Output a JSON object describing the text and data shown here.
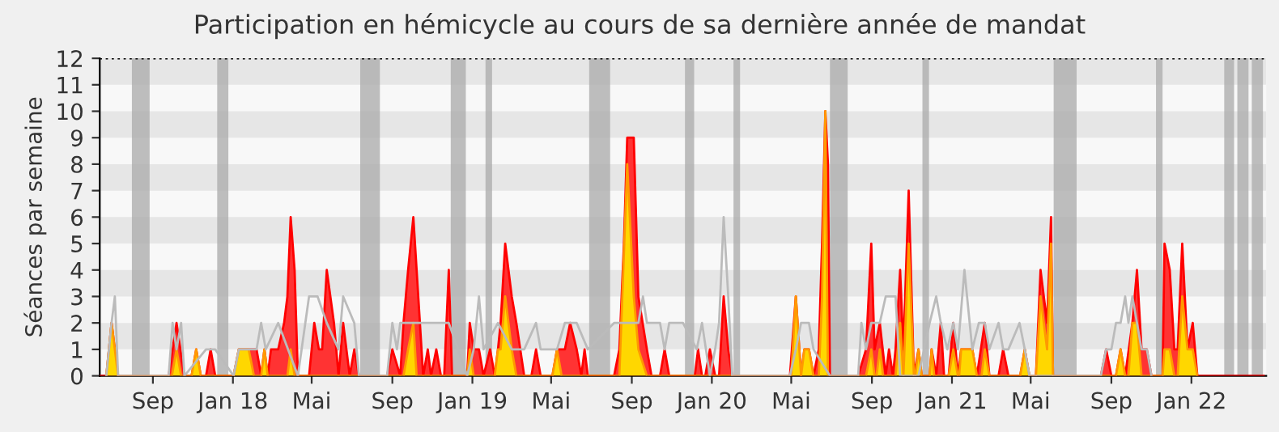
{
  "chart_data": {
    "type": "area",
    "title": "Participation en hémicycle au cours de sa dernière année de mandat",
    "ylabel": "Séances par semaine",
    "xlim": [
      "2017-06-12",
      "2022-04-25"
    ],
    "ylim": [
      0,
      12
    ],
    "yticks": [
      0,
      1,
      2,
      3,
      4,
      5,
      6,
      7,
      8,
      9,
      10,
      11,
      12
    ],
    "xticks": [
      {
        "value": "2017-09-01",
        "label": "Sep"
      },
      {
        "value": "2018-01-01",
        "label": "Jan 18"
      },
      {
        "value": "2018-05-01",
        "label": "Mai"
      },
      {
        "value": "2018-09-01",
        "label": "Sep"
      },
      {
        "value": "2019-01-01",
        "label": "Jan 19"
      },
      {
        "value": "2019-05-01",
        "label": "Mai"
      },
      {
        "value": "2019-09-01",
        "label": "Sep"
      },
      {
        "value": "2020-01-01",
        "label": "Jan 20"
      },
      {
        "value": "2020-05-01",
        "label": "Mai"
      },
      {
        "value": "2020-09-01",
        "label": "Sep"
      },
      {
        "value": "2021-01-01",
        "label": "Jan 21"
      },
      {
        "value": "2021-05-01",
        "label": "Mai"
      },
      {
        "value": "2021-09-01",
        "label": "Sep"
      },
      {
        "value": "2022-01-01",
        "label": "Jan 22"
      }
    ],
    "legend": false,
    "ref_lines": [
      {
        "axis": "y",
        "value": 12,
        "color": "#000000",
        "line_style": "dotted"
      }
    ],
    "bands": [
      {
        "axis": "x",
        "from": "2017-07-31",
        "to": "2017-08-27",
        "color": "#aaaaaa"
      },
      {
        "axis": "x",
        "from": "2017-12-08",
        "to": "2017-12-25",
        "color": "#aaaaaa"
      },
      {
        "axis": "x",
        "from": "2018-07-14",
        "to": "2018-08-13",
        "color": "#aaaaaa"
      },
      {
        "axis": "x",
        "from": "2018-11-29",
        "to": "2018-12-22",
        "color": "#aaaaaa"
      },
      {
        "axis": "x",
        "from": "2019-01-21",
        "to": "2019-01-31",
        "color": "#aaaaaa"
      },
      {
        "axis": "x",
        "from": "2019-06-28",
        "to": "2019-07-30",
        "color": "#aaaaaa"
      },
      {
        "axis": "x",
        "from": "2019-11-21",
        "to": "2019-12-05",
        "color": "#aaaaaa"
      },
      {
        "axis": "x",
        "from": "2020-02-03",
        "to": "2020-02-13",
        "color": "#aaaaaa"
      },
      {
        "axis": "x",
        "from": "2020-06-29",
        "to": "2020-07-26",
        "color": "#aaaaaa"
      },
      {
        "axis": "x",
        "from": "2020-11-17",
        "to": "2020-11-27",
        "color": "#aaaaaa"
      },
      {
        "axis": "x",
        "from": "2021-06-05",
        "to": "2021-07-10",
        "color": "#aaaaaa"
      },
      {
        "axis": "x",
        "from": "2021-11-08",
        "to": "2021-11-18",
        "color": "#aaaaaa"
      },
      {
        "axis": "x",
        "from": "2022-02-20",
        "to": "2022-03-07",
        "color": "#aaaaaa"
      },
      {
        "axis": "x",
        "from": "2022-03-12",
        "to": "2022-03-29",
        "color": "#aaaaaa"
      },
      {
        "axis": "x",
        "from": "2022-04-03",
        "to": "2022-04-20",
        "color": "#aaaaaa"
      }
    ],
    "series": [
      {
        "type": "line",
        "color": "#bbbbbb",
        "x": [
          "2017-06-22",
          "2017-06-30",
          "2017-07-05",
          "2017-07-10",
          "2017-09-25",
          "2017-10-01",
          "2017-10-07",
          "2017-10-14",
          "2017-10-19",
          "2017-11-21",
          "2017-12-05",
          "2018-01-02",
          "2018-01-10",
          "2018-02-06",
          "2018-02-13",
          "2018-02-20",
          "2018-03-11",
          "2018-04-10",
          "2018-04-27",
          "2018-05-10",
          "2018-05-24",
          "2018-06-11",
          "2018-06-18",
          "2018-07-05",
          "2018-07-12",
          "2018-08-24",
          "2018-09-01",
          "2018-09-08",
          "2018-09-13",
          "2018-10-03",
          "2018-11-26",
          "2018-12-24",
          "2019-01-03",
          "2019-01-11",
          "2019-01-18",
          "2019-02-09",
          "2019-03-02",
          "2019-03-21",
          "2019-04-08",
          "2019-04-15",
          "2019-05-10",
          "2019-05-22",
          "2019-06-09",
          "2019-06-26",
          "2019-08-05",
          "2019-09-11",
          "2019-09-18",
          "2019-09-24",
          "2019-10-14",
          "2019-10-21",
          "2019-10-28",
          "2019-11-18",
          "2019-12-09",
          "2019-12-17",
          "2019-12-29",
          "2020-01-06",
          "2020-01-12",
          "2020-01-19",
          "2020-01-26",
          "2020-02-01",
          "2020-04-29",
          "2020-05-08",
          "2020-05-16",
          "2020-05-28",
          "2020-06-04",
          "2020-06-29",
          "2020-08-11",
          "2020-08-16",
          "2020-08-23",
          "2020-08-31",
          "2020-09-13",
          "2020-09-22",
          "2020-10-07",
          "2020-10-14",
          "2020-11-11",
          "2020-11-28",
          "2020-12-08",
          "2020-12-15",
          "2020-12-25",
          "2021-01-03",
          "2021-01-10",
          "2021-01-20",
          "2021-02-01",
          "2021-02-11",
          "2021-02-20",
          "2021-02-27",
          "2021-03-13",
          "2021-03-20",
          "2021-03-28",
          "2021-04-14",
          "2021-04-22",
          "2021-04-29",
          "2021-06-04",
          "2021-08-16",
          "2021-08-24",
          "2021-09-01",
          "2021-09-08",
          "2021-09-15",
          "2021-09-22",
          "2021-09-27",
          "2021-10-03",
          "2021-10-10",
          "2021-10-17",
          "2021-10-25",
          "2021-11-01"
        ],
        "values": [
          0,
          2,
          3,
          0,
          0,
          2,
          1,
          2,
          0,
          1,
          1,
          0,
          1,
          1,
          2,
          1,
          2,
          0,
          3,
          3,
          2,
          1,
          3,
          2,
          0,
          0,
          2,
          1,
          2,
          2,
          2,
          0,
          1,
          3,
          1,
          2,
          1,
          1,
          2,
          1,
          1,
          2,
          2,
          1,
          2,
          2,
          3,
          2,
          2,
          1,
          2,
          2,
          1,
          2,
          0,
          1,
          2,
          6,
          3,
          0,
          0,
          1,
          2,
          2,
          1,
          0,
          0,
          2,
          1,
          2,
          2,
          3,
          3,
          0,
          0,
          2,
          3,
          2,
          1,
          2,
          1,
          4,
          1,
          2,
          2,
          1,
          2,
          1,
          1,
          2,
          1,
          0,
          0,
          0,
          1,
          1,
          2,
          2,
          3,
          2,
          3,
          2,
          1,
          1,
          0
        ]
      },
      {
        "color": "#ff3333",
        "x": [
          "2017-06-12",
          "2017-06-22",
          "2017-06-30",
          "2017-07-10",
          "2017-09-25",
          "2017-10-07",
          "2017-10-19",
          "2017-10-30",
          "2017-11-06",
          "2017-11-13",
          "2017-11-21",
          "2017-11-28",
          "2017-12-05",
          "2018-01-02",
          "2018-01-10",
          "2018-02-06",
          "2018-02-13",
          "2018-02-18",
          "2018-02-23",
          "2018-02-28",
          "2018-03-11",
          "2018-03-20",
          "2018-03-25",
          "2018-03-30",
          "2018-04-05",
          "2018-04-10",
          "2018-04-27",
          "2018-05-05",
          "2018-05-12",
          "2018-05-17",
          "2018-05-24",
          "2018-06-04",
          "2018-06-11",
          "2018-06-18",
          "2018-06-28",
          "2018-07-05",
          "2018-07-12",
          "2018-08-24",
          "2018-09-01",
          "2018-09-13",
          "2018-09-18",
          "2018-09-25",
          "2018-10-03",
          "2018-10-08",
          "2018-10-18",
          "2018-10-25",
          "2018-10-30",
          "2018-11-07",
          "2018-11-14",
          "2018-11-19",
          "2018-11-26",
          "2018-12-01",
          "2018-12-24",
          "2018-12-28",
          "2019-01-03",
          "2019-01-11",
          "2019-01-18",
          "2019-01-28",
          "2019-02-04",
          "2019-02-09",
          "2019-02-13",
          "2019-02-20",
          "2019-03-02",
          "2019-03-09",
          "2019-03-21",
          "2019-04-01",
          "2019-04-08",
          "2019-04-15",
          "2019-05-03",
          "2019-05-10",
          "2019-05-22",
          "2019-05-30",
          "2019-06-09",
          "2019-06-16",
          "2019-06-21",
          "2019-06-26",
          "2019-08-05",
          "2019-08-13",
          "2019-08-20",
          "2019-08-25",
          "2019-09-04",
          "2019-09-11",
          "2019-09-24",
          "2019-10-01",
          "2019-10-14",
          "2019-10-21",
          "2019-10-28",
          "2019-12-06",
          "2019-12-11",
          "2019-12-17",
          "2019-12-22",
          "2019-12-29",
          "2020-01-06",
          "2020-01-12",
          "2020-01-19",
          "2020-01-26",
          "2020-02-01",
          "2020-04-29",
          "2020-05-08",
          "2020-05-16",
          "2020-05-21",
          "2020-05-28",
          "2020-06-04",
          "2020-06-12",
          "2020-06-17",
          "2020-06-22",
          "2020-06-26",
          "2020-06-29",
          "2020-08-11",
          "2020-08-23",
          "2020-08-31",
          "2020-09-05",
          "2020-09-13",
          "2020-09-22",
          "2020-09-27",
          "2020-10-03",
          "2020-10-07",
          "2020-10-14",
          "2020-10-19",
          "2020-10-27",
          "2020-11-04",
          "2020-11-11",
          "2020-11-16",
          "2020-11-28",
          "2020-12-01",
          "2020-12-08",
          "2020-12-15",
          "2020-12-20",
          "2020-12-27",
          "2021-01-03",
          "2021-01-10",
          "2021-01-15",
          "2021-02-01",
          "2021-02-08",
          "2021-02-20",
          "2021-02-27",
          "2021-03-13",
          "2021-03-20",
          "2021-03-28",
          "2021-04-15",
          "2021-04-22",
          "2021-04-29",
          "2021-05-09",
          "2021-05-16",
          "2021-05-26",
          "2021-06-01",
          "2021-06-04",
          "2021-08-16",
          "2021-08-24",
          "2021-09-01",
          "2021-09-08",
          "2021-09-15",
          "2021-09-22",
          "2021-10-03",
          "2021-10-10",
          "2021-10-17",
          "2021-10-25",
          "2021-11-01",
          "2021-11-18",
          "2021-11-21",
          "2021-11-29",
          "2021-12-06",
          "2021-12-11",
          "2021-12-18",
          "2021-12-26",
          "2022-01-03",
          "2022-01-10",
          "2022-04-21"
        ],
        "values": [
          0,
          0,
          2,
          0,
          0,
          2,
          0,
          0,
          1,
          0,
          0,
          1,
          0,
          0,
          1,
          1,
          0,
          1,
          0,
          1,
          1,
          2,
          3,
          6,
          4,
          0,
          0,
          2,
          1,
          1,
          4,
          2,
          0,
          2,
          0,
          1,
          0,
          0,
          1,
          0,
          2,
          4,
          6,
          4,
          0,
          1,
          0,
          1,
          0,
          0,
          4,
          0,
          0,
          2,
          1,
          1,
          0,
          1,
          0,
          1,
          2,
          5,
          3,
          2,
          0,
          0,
          1,
          0,
          0,
          1,
          1,
          2,
          1,
          0,
          1,
          0,
          0,
          1,
          5,
          9,
          9,
          3,
          1,
          0,
          0,
          1,
          0,
          0,
          1,
          0,
          0,
          1,
          0,
          0,
          3,
          1,
          0,
          0,
          3,
          0,
          1,
          1,
          0,
          1,
          5,
          10,
          8,
          0,
          0,
          1,
          5,
          1,
          2,
          0,
          1,
          0,
          1,
          4,
          1,
          7,
          0,
          1,
          0,
          0,
          1,
          0,
          2,
          0,
          0,
          2,
          0,
          1,
          1,
          0,
          2,
          0,
          0,
          1,
          0,
          0,
          1,
          0,
          0,
          4,
          2,
          6,
          0,
          0,
          1,
          0,
          0,
          1,
          0,
          2,
          4,
          1,
          1,
          0,
          0,
          5,
          4,
          1,
          1,
          5,
          1,
          2,
          0,
          0
        ]
      },
      {
        "color": "#ffd700",
        "x": [
          "2017-06-22",
          "2017-06-30",
          "2017-07-10",
          "2017-09-30",
          "2017-10-07",
          "2017-10-14",
          "2017-10-30",
          "2017-11-06",
          "2017-11-13",
          "2018-01-02",
          "2018-01-10",
          "2018-01-25",
          "2018-02-02",
          "2018-02-13",
          "2018-02-18",
          "2018-02-23",
          "2018-03-25",
          "2018-03-30",
          "2018-04-05",
          "2018-09-18",
          "2018-09-25",
          "2018-10-03",
          "2018-10-08",
          "2018-12-24",
          "2018-12-28",
          "2019-01-03",
          "2019-02-04",
          "2019-02-09",
          "2019-02-13",
          "2019-02-20",
          "2019-03-02",
          "2019-03-09",
          "2019-05-03",
          "2019-05-10",
          "2019-05-17",
          "2019-08-13",
          "2019-08-25",
          "2019-09-04",
          "2019-09-11",
          "2019-09-24",
          "2020-05-01",
          "2020-05-08",
          "2020-05-16",
          "2020-05-21",
          "2020-05-28",
          "2020-06-04",
          "2020-06-12",
          "2020-06-17",
          "2020-06-22",
          "2020-06-26",
          "2020-08-23",
          "2020-08-31",
          "2020-09-05",
          "2020-09-08",
          "2020-09-13",
          "2020-09-18",
          "2020-10-07",
          "2020-10-14",
          "2020-10-19",
          "2020-10-27",
          "2020-11-04",
          "2020-11-06",
          "2020-11-11",
          "2020-11-16",
          "2020-11-28",
          "2020-12-01",
          "2020-12-05",
          "2020-12-27",
          "2021-01-03",
          "2021-01-10",
          "2021-01-12",
          "2021-01-15",
          "2021-02-01",
          "2021-02-08",
          "2021-02-15",
          "2021-02-20",
          "2021-02-27",
          "2021-04-15",
          "2021-04-22",
          "2021-04-29",
          "2021-05-09",
          "2021-05-16",
          "2021-05-26",
          "2021-06-01",
          "2021-06-04",
          "2021-09-08",
          "2021-09-15",
          "2021-09-22",
          "2021-09-27",
          "2021-10-03",
          "2021-10-10",
          "2021-10-17",
          "2021-11-18",
          "2021-11-21",
          "2021-11-29",
          "2021-12-06",
          "2021-12-11",
          "2021-12-18",
          "2021-12-26",
          "2022-01-03",
          "2022-01-10"
        ],
        "values": [
          0,
          2,
          0,
          0,
          1,
          0,
          0,
          1,
          0,
          0,
          1,
          1,
          0,
          0,
          1,
          0,
          0,
          1,
          0,
          0,
          1,
          2,
          0,
          0,
          1,
          0,
          0,
          1,
          1,
          3,
          1,
          0,
          0,
          1,
          0,
          0,
          8,
          3,
          1,
          0,
          0,
          3,
          0,
          1,
          1,
          0,
          0,
          3,
          10,
          0,
          0,
          1,
          0,
          0,
          1,
          0,
          0,
          2,
          0,
          5,
          0,
          0,
          1,
          0,
          0,
          1,
          0,
          0,
          1,
          0,
          0,
          1,
          1,
          0,
          0,
          1,
          0,
          0,
          1,
          0,
          0,
          3,
          1,
          5,
          0,
          0,
          1,
          0,
          0,
          2,
          2,
          0,
          0,
          1,
          1,
          0,
          0,
          3,
          1,
          1,
          0
        ]
      }
    ]
  }
}
